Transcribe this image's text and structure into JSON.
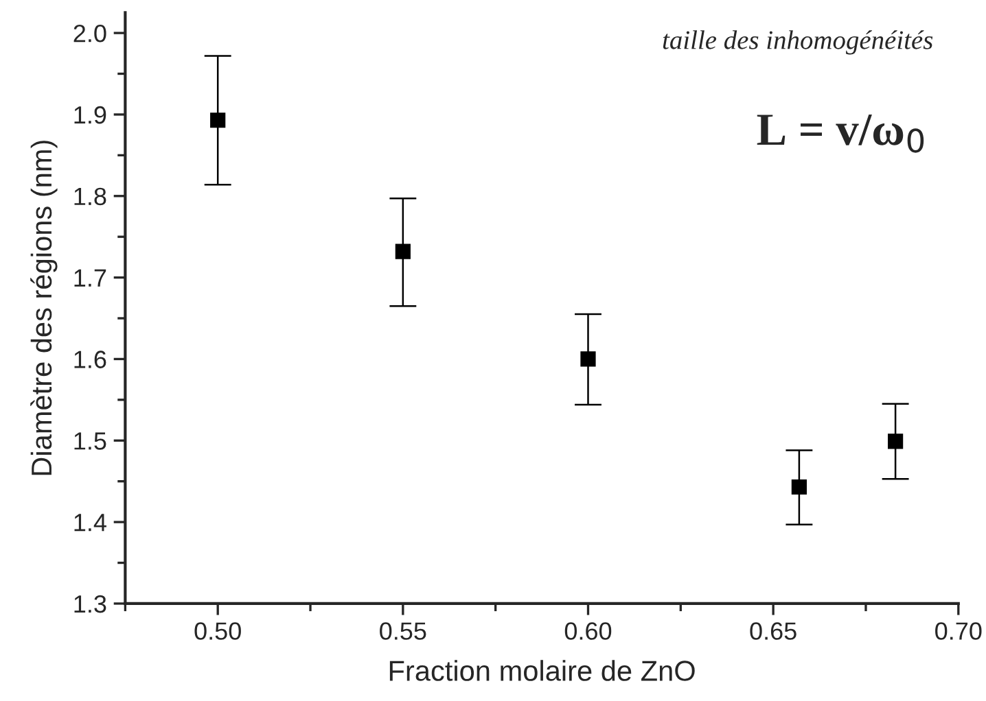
{
  "chart_data": {
    "type": "scatter",
    "xlabel": "Fraction molaire de ZnO",
    "ylabel": "Diamètre des régions (nm)",
    "annotations": [
      "taille des inhomogénéités",
      "L = v/ω$_{0}$"
    ],
    "x": [
      0.5,
      0.55,
      0.6,
      0.657,
      0.683
    ],
    "values": [
      1.893,
      1.732,
      1.6,
      1.443,
      1.499
    ],
    "errors": [
      [
        1.814,
        1.972
      ],
      [
        1.665,
        1.797
      ],
      [
        1.544,
        1.655
      ],
      [
        1.397,
        1.488
      ],
      [
        1.453,
        1.545
      ]
    ],
    "color": "#000000",
    "marker": "square",
    "xlim": [
      0.475,
      0.7
    ],
    "xticks": [
      {
        "value": 0.5,
        "label": "0.50"
      },
      0.55,
      {
        "value": 0.6,
        "label": "0.60"
      },
      0.65,
      {
        "value": 0.7,
        "label": "0.70"
      }
    ],
    "ylim": [
      1.3,
      2.025
    ],
    "yticks": [
      1.3,
      1.4,
      1.5,
      1.6,
      1.7,
      1.8,
      1.9,
      {
        "value": 2,
        "label": "2.0"
      }
    ],
    "grid": false,
    "legend": false
  }
}
